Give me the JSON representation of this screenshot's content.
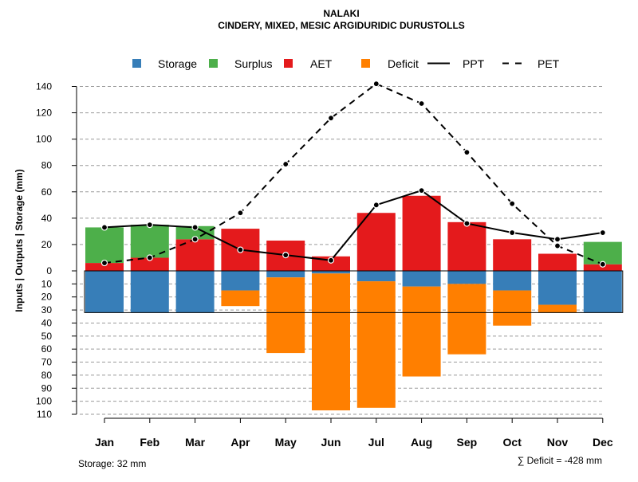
{
  "chart_data": {
    "type": "bar",
    "title": "NALAKI",
    "subtitle": "CINDERY, MIXED, MESIC ARGIDURIDIC DURUSTOLLS",
    "ylabel": "Inputs | Outputs | Storage    (mm)",
    "categories": [
      "Jan",
      "Feb",
      "Mar",
      "Apr",
      "May",
      "Jun",
      "Jul",
      "Aug",
      "Sep",
      "Oct",
      "Nov",
      "Dec"
    ],
    "upper_ylim": [
      0,
      140
    ],
    "upper_ticks": [
      "0",
      "20",
      "40",
      "60",
      "80",
      "100",
      "120",
      "140"
    ],
    "lower_ylim": [
      0,
      110
    ],
    "lower_ticks": [
      "10",
      "20",
      "30",
      "40",
      "50",
      "60",
      "70",
      "80",
      "90",
      "100",
      "110"
    ],
    "grid": true,
    "legend_position": "top",
    "legend": [
      {
        "key": "storage",
        "label": "Storage",
        "kind": "box",
        "color": "#377EB8"
      },
      {
        "key": "surplus",
        "label": "Surplus",
        "kind": "box",
        "color": "#4DAF4A"
      },
      {
        "key": "aet",
        "label": "AET",
        "kind": "box",
        "color": "#E41A1C"
      },
      {
        "key": "deficit",
        "label": "Deficit",
        "kind": "box",
        "color": "#FF7F00"
      },
      {
        "key": "ppt",
        "label": "PPT",
        "kind": "solid-line",
        "color": "#000000"
      },
      {
        "key": "pet",
        "label": "PET",
        "kind": "dashed-line",
        "color": "#000000"
      }
    ],
    "series": [
      {
        "name": "AET",
        "values": [
          6,
          10,
          24,
          32,
          23,
          11,
          44,
          57,
          37,
          24,
          13,
          5
        ]
      },
      {
        "name": "Surplus",
        "values": [
          27,
          25,
          10,
          0,
          0,
          0,
          0,
          0,
          0,
          0,
          0,
          17
        ]
      },
      {
        "name": "Storage",
        "values": [
          32,
          32,
          32,
          15,
          5,
          2,
          8,
          12,
          10,
          15,
          26,
          32
        ]
      },
      {
        "name": "Deficit",
        "values": [
          0,
          0,
          0,
          12,
          58,
          105,
          97,
          69,
          54,
          27,
          6,
          0
        ]
      },
      {
        "name": "PPT",
        "values": [
          33,
          35,
          33,
          16,
          12,
          8,
          50,
          61,
          36,
          29,
          24,
          29
        ]
      },
      {
        "name": "PET",
        "values": [
          6,
          10,
          24,
          44,
          81,
          116,
          142,
          127,
          90,
          51,
          19,
          5
        ]
      }
    ],
    "storage_capacity": 32,
    "footnote_left": "Storage: 32 mm",
    "footnote_right": "∑ Deficit = -428 mm"
  }
}
